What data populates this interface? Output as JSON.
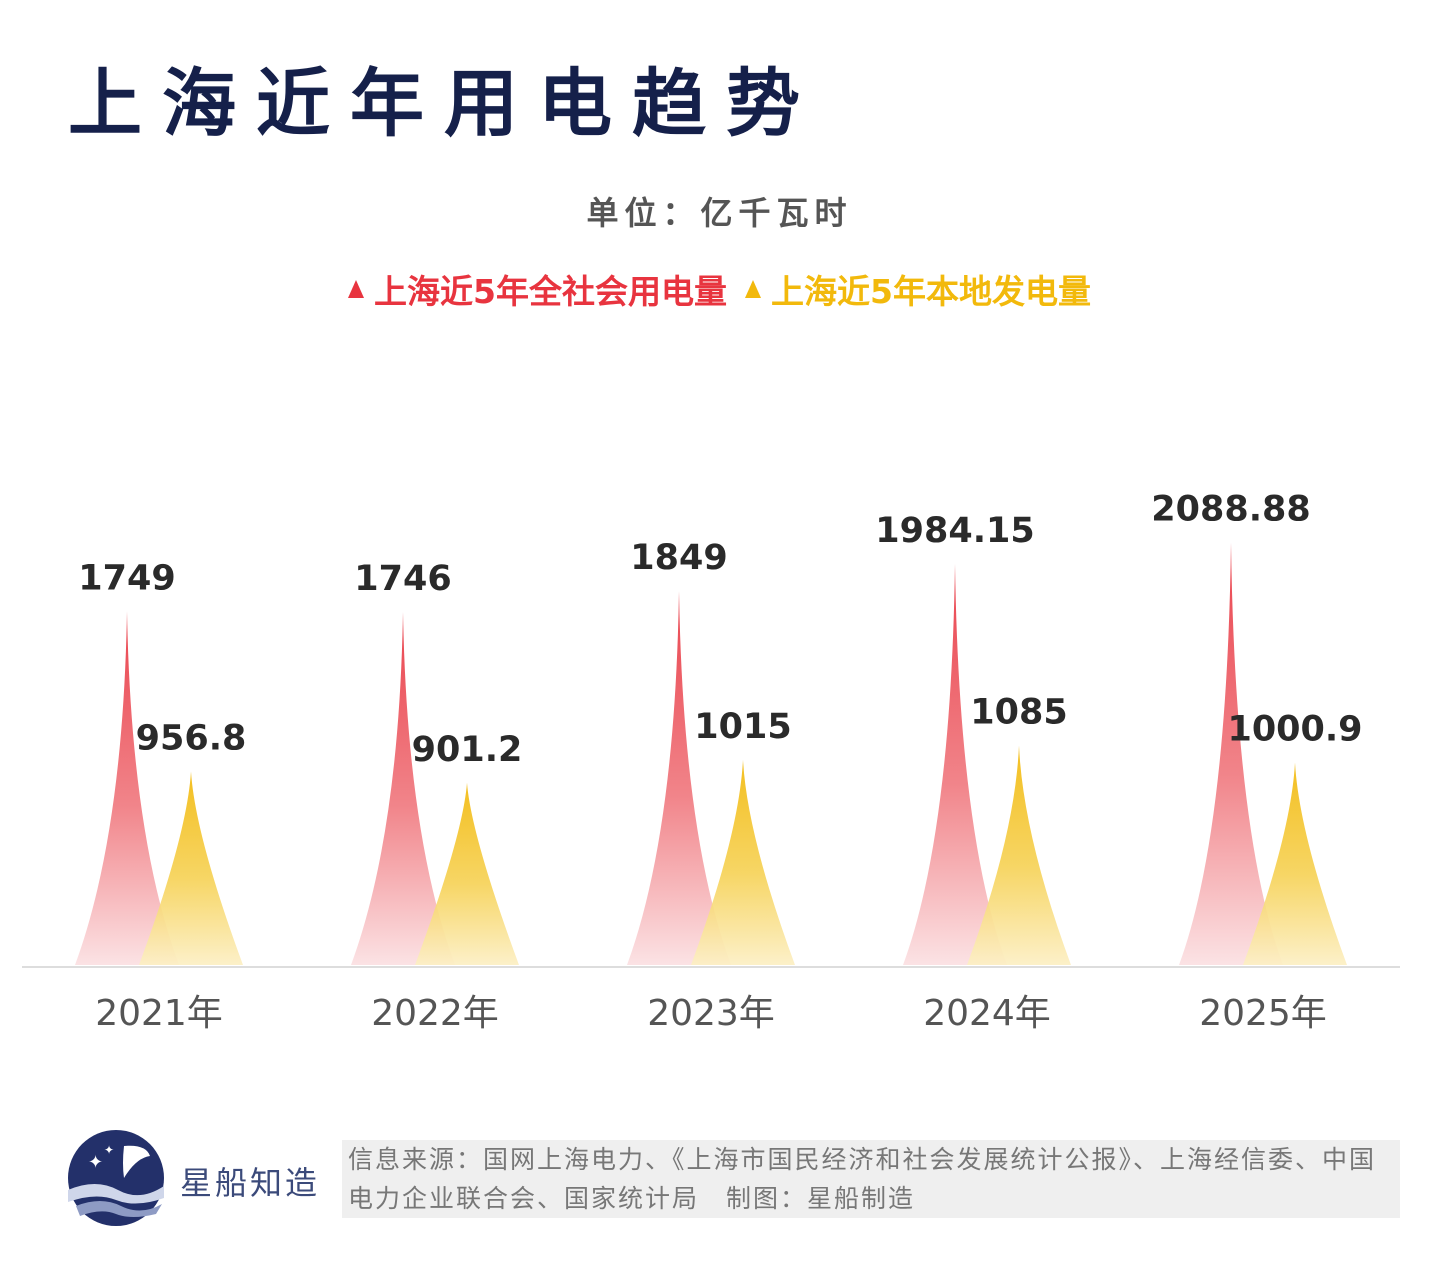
{
  "page": {
    "title": "上海近年用电趋势",
    "unit_label": "单位：亿千瓦时",
    "brand": "星船知造",
    "source_text": "信息来源：国网上海电力、《上海市国民经济和社会发展统计公报》、上海经信委、中国电力企业联合会、国家统计局　制图：星船制造",
    "colors": {
      "title": "#15204a",
      "series_red": "#e8343f",
      "series_gold": "#f2b90c",
      "axis": "#dddddd"
    }
  },
  "chart_data": {
    "type": "bar",
    "categories": [
      "2021年",
      "2022年",
      "2023年",
      "2024年",
      "2025年"
    ],
    "series": [
      {
        "name": "上海近5年全社会用电量",
        "values": [
          1749,
          1746,
          1849,
          1984.15,
          2088.88
        ],
        "labels": [
          "1749",
          "1746",
          "1849",
          "1984.15",
          "2088.88"
        ]
      },
      {
        "name": "上海近5年本地发电量",
        "values": [
          956.8,
          901.2,
          1015,
          1085,
          1000.9
        ],
        "labels": [
          "956.8",
          "901.2",
          "1015",
          "1085",
          "1000.9"
        ]
      }
    ],
    "ylim": [
      0,
      2300
    ],
    "grid": false,
    "legend_position": "top-center"
  }
}
